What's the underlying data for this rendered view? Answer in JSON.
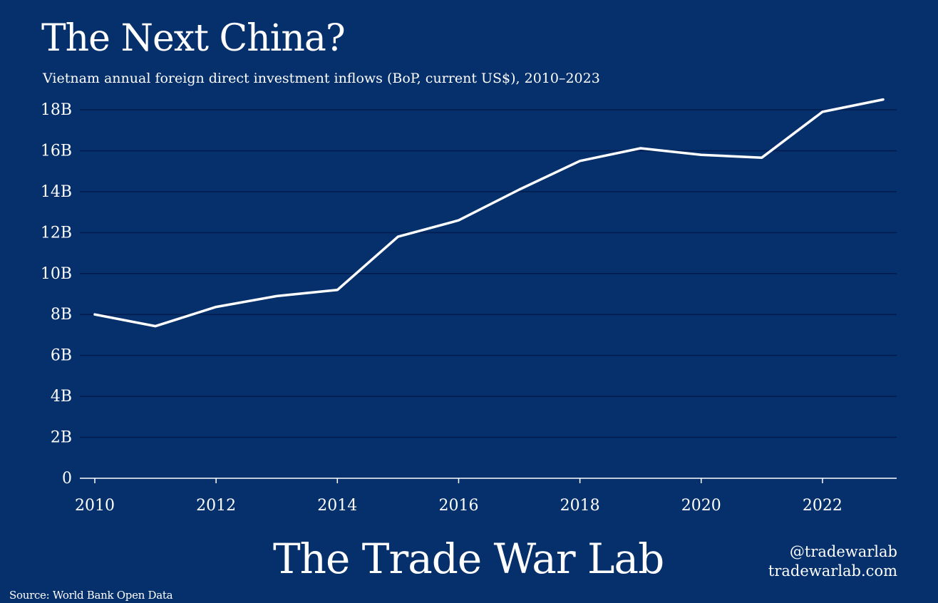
{
  "header": {
    "title": "The Next China?",
    "subtitle": "Vietnam annual foreign direct investment inflows (BoP, current US$), 2010–2023"
  },
  "footer": {
    "brand": "The Trade War Lab",
    "handle": "@tradewarlab",
    "website": "tradewarlab.com",
    "source": "Source: World Bank Open Data"
  },
  "colors": {
    "background": "#06306b",
    "line": "#ffffff",
    "grid": "#001a4d",
    "axis": "#ffffff"
  },
  "chart_data": {
    "type": "line",
    "title": "The Next China?",
    "subtitle": "Vietnam annual foreign direct investment inflows (BoP, current US$), 2010–2023",
    "xlabel": "",
    "ylabel": "",
    "x": [
      2010,
      2011,
      2012,
      2013,
      2014,
      2015,
      2016,
      2017,
      2018,
      2019,
      2020,
      2021,
      2022,
      2023
    ],
    "series": [
      {
        "name": "FDI inflows",
        "values": [
          8.0,
          7.43,
          8.37,
          8.9,
          9.2,
          11.8,
          12.6,
          14.1,
          15.5,
          16.12,
          15.8,
          15.66,
          17.9,
          18.5
        ]
      }
    ],
    "xlim": [
      2010,
      2023
    ],
    "ylim": [
      0,
      18
    ],
    "x_ticks": [
      2010,
      2012,
      2014,
      2016,
      2018,
      2020,
      2022
    ],
    "x_tick_labels": [
      "2010",
      "2012",
      "2014",
      "2016",
      "2018",
      "2020",
      "2022"
    ],
    "y_ticks": [
      0,
      2,
      4,
      6,
      8,
      10,
      12,
      14,
      16,
      18
    ],
    "y_tick_labels": [
      "0",
      "2B",
      "4B",
      "6B",
      "8B",
      "10B",
      "12B",
      "14B",
      "16B",
      "18B"
    ],
    "grid": true,
    "legend": "none"
  }
}
